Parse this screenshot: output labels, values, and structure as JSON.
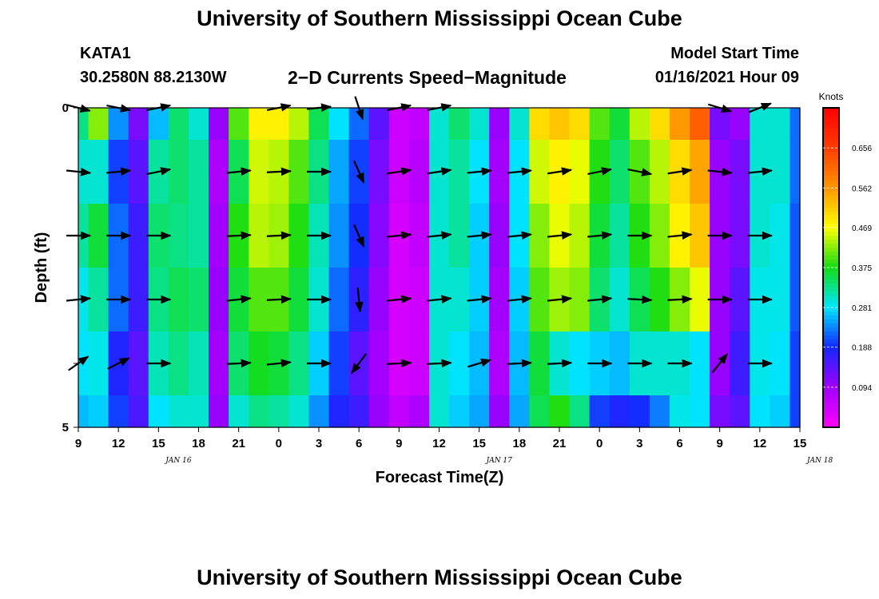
{
  "header": {
    "title": "University of Southern Mississippi Ocean Cube",
    "station_id": "KATA1",
    "station_coords": "30.2580N 88.2130W",
    "plot_title": "2−D Currents Speed−Magnitude",
    "model_label": "Model Start Time",
    "model_time": "01/16/2021 Hour 09"
  },
  "footer": {
    "title": "University of Southern Mississippi Ocean Cube"
  },
  "chart_data": {
    "type": "heatmap",
    "title": "2-D Currents Speed-Magnitude",
    "xlabel": "Forecast Time(Z)",
    "ylabel": "Depth (ft)",
    "y_ticks": [
      "0",
      "5"
    ],
    "ylim": [
      0,
      5
    ],
    "x_hours": [
      9,
      10.5,
      12,
      13.5,
      15,
      16.5,
      18,
      19.5,
      21,
      22.5,
      24,
      25.5,
      27,
      28.5,
      30,
      31.5,
      33,
      34.5,
      36,
      37.5,
      39,
      40.5,
      42,
      43.5,
      45,
      46.5,
      48,
      49.5,
      51,
      52.5,
      54,
      55.5,
      57,
      58.5,
      60,
      61.5,
      63
    ],
    "x_tick_labels": [
      "9",
      "12",
      "15",
      "18",
      "21",
      "0",
      "3",
      "6",
      "9",
      "12",
      "15",
      "18",
      "21",
      "0",
      "3",
      "6",
      "9",
      "12",
      "15"
    ],
    "date_labels": [
      "JAN 16",
      "JAN 17",
      "JAN 18"
    ],
    "depth_levels": [
      0,
      1,
      2,
      3,
      4,
      5
    ],
    "speed_knots": [
      [
        0.33,
        0.3,
        0.32,
        0.29,
        0.28,
        0.26
      ],
      [
        0.42,
        0.3,
        0.36,
        0.32,
        0.29,
        0.27
      ],
      [
        0.24,
        0.2,
        0.22,
        0.22,
        0.18,
        0.2
      ],
      [
        0.12,
        0.14,
        0.16,
        0.16,
        0.14,
        0.15
      ],
      [
        0.26,
        0.32,
        0.34,
        0.33,
        0.31,
        0.28
      ],
      [
        0.34,
        0.34,
        0.33,
        0.35,
        0.33,
        0.3
      ],
      [
        0.3,
        0.32,
        0.32,
        0.34,
        0.31,
        0.3
      ],
      [
        0.1,
        0.08,
        0.09,
        0.1,
        0.09,
        0.1
      ],
      [
        0.4,
        0.35,
        0.38,
        0.36,
        0.34,
        0.3
      ],
      [
        0.48,
        0.45,
        0.44,
        0.4,
        0.37,
        0.33
      ],
      [
        0.48,
        0.44,
        0.43,
        0.4,
        0.36,
        0.32
      ],
      [
        0.44,
        0.4,
        0.38,
        0.36,
        0.33,
        0.3
      ],
      [
        0.35,
        0.33,
        0.31,
        0.3,
        0.27,
        0.24
      ],
      [
        0.28,
        0.25,
        0.24,
        0.22,
        0.2,
        0.18
      ],
      [
        0.22,
        0.2,
        0.19,
        0.17,
        0.14,
        0.16
      ],
      [
        0.14,
        0.12,
        0.11,
        0.1,
        0.09,
        0.1
      ],
      [
        0.05,
        0.05,
        0.04,
        0.04,
        0.04,
        0.06
      ],
      [
        0.06,
        0.07,
        0.06,
        0.05,
        0.05,
        0.08
      ],
      [
        0.3,
        0.3,
        0.3,
        0.3,
        0.3,
        0.3
      ],
      [
        0.34,
        0.32,
        0.32,
        0.3,
        0.28,
        0.27
      ],
      [
        0.3,
        0.28,
        0.27,
        0.27,
        0.26,
        0.25
      ],
      [
        0.1,
        0.09,
        0.1,
        0.09,
        0.08,
        0.1
      ],
      [
        0.3,
        0.28,
        0.28,
        0.27,
        0.26,
        0.25
      ],
      [
        0.5,
        0.45,
        0.42,
        0.4,
        0.36,
        0.35
      ],
      [
        0.52,
        0.48,
        0.46,
        0.43,
        0.3,
        0.38
      ],
      [
        0.5,
        0.46,
        0.44,
        0.42,
        0.28,
        0.33
      ],
      [
        0.4,
        0.38,
        0.36,
        0.34,
        0.27,
        0.2
      ],
      [
        0.36,
        0.34,
        0.32,
        0.3,
        0.26,
        0.18
      ],
      [
        0.44,
        0.4,
        0.38,
        0.35,
        0.3,
        0.19
      ],
      [
        0.5,
        0.44,
        0.42,
        0.38,
        0.3,
        0.23
      ],
      [
        0.56,
        0.5,
        0.48,
        0.42,
        0.3,
        0.29
      ],
      [
        0.62,
        0.55,
        0.52,
        0.46,
        0.28,
        0.28
      ],
      [
        0.12,
        0.1,
        0.1,
        0.1,
        0.1,
        0.12
      ],
      [
        0.1,
        0.12,
        0.12,
        0.14,
        0.16,
        0.14
      ],
      [
        0.3,
        0.3,
        0.3,
        0.29,
        0.29,
        0.28
      ],
      [
        0.3,
        0.3,
        0.29,
        0.29,
        0.28,
        0.27
      ],
      [
        0.22,
        0.22,
        0.21,
        0.21,
        0.2,
        0.2
      ]
    ],
    "vectors": [
      {
        "x": 9,
        "row": 0,
        "dx": 1,
        "dy": -0.25
      },
      {
        "x": 12,
        "row": 0,
        "dx": 1,
        "dy": -0.2
      },
      {
        "x": 15,
        "row": 0,
        "dx": 1,
        "dy": 0.2
      },
      {
        "x": 24,
        "row": 0,
        "dx": 1,
        "dy": 0.2
      },
      {
        "x": 27,
        "row": 0,
        "dx": 1,
        "dy": 0.1
      },
      {
        "x": 30,
        "row": 0,
        "dx": 0.3,
        "dy": -0.9
      },
      {
        "x": 33,
        "row": 0,
        "dx": 1,
        "dy": 0.2
      },
      {
        "x": 36,
        "row": 0,
        "dx": 1,
        "dy": 0.2
      },
      {
        "x": 57,
        "row": 0,
        "dx": 1,
        "dy": -0.3
      },
      {
        "x": 60,
        "row": 0,
        "dx": 1,
        "dy": 0.4
      },
      {
        "x": 9,
        "row": 1,
        "dx": 1,
        "dy": -0.1
      },
      {
        "x": 12,
        "row": 1,
        "dx": 1,
        "dy": 0.1
      },
      {
        "x": 15,
        "row": 1,
        "dx": 1,
        "dy": 0.2
      },
      {
        "x": 21,
        "row": 1,
        "dx": 1,
        "dy": 0.1
      },
      {
        "x": 24,
        "row": 1,
        "dx": 1,
        "dy": 0.05
      },
      {
        "x": 27,
        "row": 1,
        "dx": 1,
        "dy": 0
      },
      {
        "x": 30,
        "row": 1,
        "dx": 0.4,
        "dy": -0.9
      },
      {
        "x": 33,
        "row": 1,
        "dx": 1,
        "dy": 0.15
      },
      {
        "x": 36,
        "row": 1,
        "dx": 1,
        "dy": 0.15
      },
      {
        "x": 39,
        "row": 1,
        "dx": 1,
        "dy": 0.1
      },
      {
        "x": 42,
        "row": 1,
        "dx": 1,
        "dy": 0.1
      },
      {
        "x": 45,
        "row": 1,
        "dx": 1,
        "dy": 0.15
      },
      {
        "x": 48,
        "row": 1,
        "dx": 1,
        "dy": 0.2
      },
      {
        "x": 51,
        "row": 1,
        "dx": 1,
        "dy": -0.2
      },
      {
        "x": 54,
        "row": 1,
        "dx": 1,
        "dy": 0.15
      },
      {
        "x": 57,
        "row": 1,
        "dx": 1,
        "dy": -0.1
      },
      {
        "x": 60,
        "row": 1,
        "dx": 1,
        "dy": 0.1
      },
      {
        "x": 9,
        "row": 2,
        "dx": 1,
        "dy": 0
      },
      {
        "x": 12,
        "row": 2,
        "dx": 1,
        "dy": 0
      },
      {
        "x": 15,
        "row": 2,
        "dx": 1,
        "dy": 0
      },
      {
        "x": 21,
        "row": 2,
        "dx": 1,
        "dy": 0.05
      },
      {
        "x": 24,
        "row": 2,
        "dx": 1,
        "dy": 0.05
      },
      {
        "x": 27,
        "row": 2,
        "dx": 1,
        "dy": 0
      },
      {
        "x": 30,
        "row": 2,
        "dx": 0.4,
        "dy": -0.9
      },
      {
        "x": 33,
        "row": 2,
        "dx": 1,
        "dy": 0.1
      },
      {
        "x": 36,
        "row": 2,
        "dx": 1,
        "dy": 0.1
      },
      {
        "x": 39,
        "row": 2,
        "dx": 1,
        "dy": 0.1
      },
      {
        "x": 42,
        "row": 2,
        "dx": 1,
        "dy": 0.1
      },
      {
        "x": 45,
        "row": 2,
        "dx": 1,
        "dy": 0.1
      },
      {
        "x": 48,
        "row": 2,
        "dx": 1,
        "dy": 0.1
      },
      {
        "x": 51,
        "row": 2,
        "dx": 1,
        "dy": 0
      },
      {
        "x": 54,
        "row": 2,
        "dx": 1,
        "dy": 0.1
      },
      {
        "x": 57,
        "row": 2,
        "dx": 1,
        "dy": 0
      },
      {
        "x": 60,
        "row": 2,
        "dx": 1,
        "dy": 0
      },
      {
        "x": 9,
        "row": 3,
        "dx": 1,
        "dy": 0.1
      },
      {
        "x": 12,
        "row": 3,
        "dx": 1,
        "dy": 0
      },
      {
        "x": 15,
        "row": 3,
        "dx": 1,
        "dy": 0
      },
      {
        "x": 21,
        "row": 3,
        "dx": 1,
        "dy": 0.1
      },
      {
        "x": 24,
        "row": 3,
        "dx": 1,
        "dy": 0.05
      },
      {
        "x": 27,
        "row": 3,
        "dx": 1,
        "dy": 0
      },
      {
        "x": 30,
        "row": 3,
        "dx": 0.1,
        "dy": -1
      },
      {
        "x": 33,
        "row": 3,
        "dx": 1,
        "dy": 0.1
      },
      {
        "x": 36,
        "row": 3,
        "dx": 1,
        "dy": 0.1
      },
      {
        "x": 39,
        "row": 3,
        "dx": 1,
        "dy": 0.1
      },
      {
        "x": 42,
        "row": 3,
        "dx": 1,
        "dy": 0.1
      },
      {
        "x": 45,
        "row": 3,
        "dx": 1,
        "dy": 0.1
      },
      {
        "x": 48,
        "row": 3,
        "dx": 1,
        "dy": 0.1
      },
      {
        "x": 51,
        "row": 3,
        "dx": 1,
        "dy": -0.05
      },
      {
        "x": 54,
        "row": 3,
        "dx": 1,
        "dy": 0.05
      },
      {
        "x": 57,
        "row": 3,
        "dx": 1,
        "dy": 0
      },
      {
        "x": 60,
        "row": 3,
        "dx": 1,
        "dy": 0
      },
      {
        "x": 9,
        "row": 4,
        "dx": 1,
        "dy": 0.7
      },
      {
        "x": 12,
        "row": 4,
        "dx": 1,
        "dy": 0.5
      },
      {
        "x": 15,
        "row": 4,
        "dx": 1,
        "dy": 0
      },
      {
        "x": 21,
        "row": 4,
        "dx": 1,
        "dy": 0.05
      },
      {
        "x": 24,
        "row": 4,
        "dx": 1,
        "dy": 0.1
      },
      {
        "x": 27,
        "row": 4,
        "dx": 1,
        "dy": 0
      },
      {
        "x": 30,
        "row": 4,
        "dx": -0.6,
        "dy": -0.8
      },
      {
        "x": 33,
        "row": 4,
        "dx": 1,
        "dy": 0.05
      },
      {
        "x": 36,
        "row": 4,
        "dx": 1,
        "dy": 0.05
      },
      {
        "x": 39,
        "row": 4,
        "dx": 1,
        "dy": 0.3
      },
      {
        "x": 42,
        "row": 4,
        "dx": 1,
        "dy": 0.05
      },
      {
        "x": 45,
        "row": 4,
        "dx": 1,
        "dy": 0.05
      },
      {
        "x": 48,
        "row": 4,
        "dx": 1,
        "dy": 0
      },
      {
        "x": 51,
        "row": 4,
        "dx": 1,
        "dy": 0
      },
      {
        "x": 54,
        "row": 4,
        "dx": 1,
        "dy": 0
      },
      {
        "x": 57,
        "row": 4,
        "dx": 0.8,
        "dy": 1
      },
      {
        "x": 60,
        "row": 4,
        "dx": 1,
        "dy": 0
      }
    ],
    "colorbar": {
      "label": "Knots",
      "ticks": [
        "0.094",
        "0.188",
        "0.281",
        "0.375",
        "0.469",
        "0.562",
        "0.656"
      ],
      "range": [
        0,
        0.75
      ]
    }
  }
}
